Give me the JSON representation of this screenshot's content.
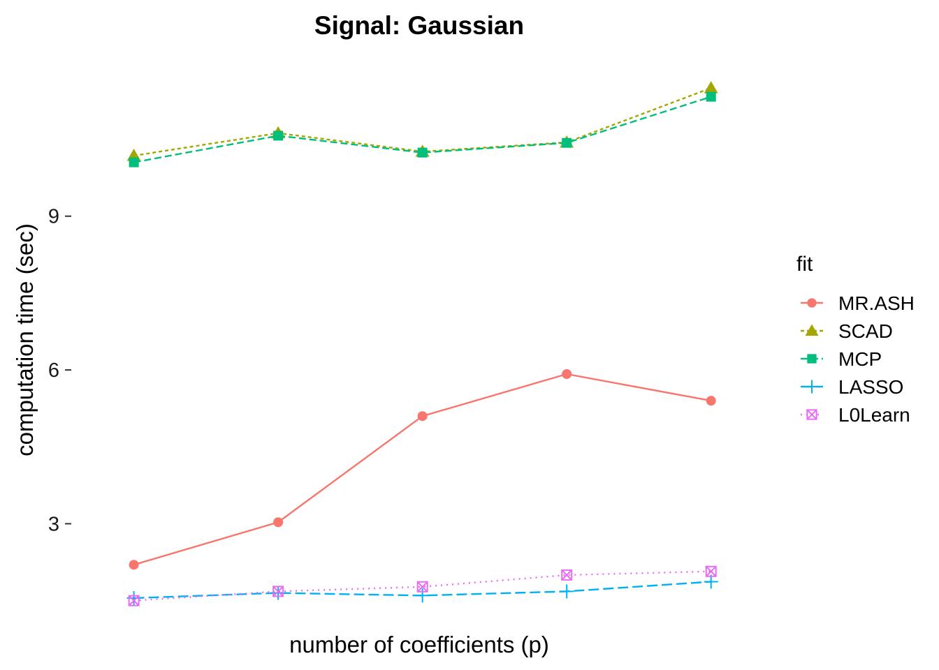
{
  "chart_data": {
    "type": "line",
    "title": "Signal: Gaussian",
    "xlabel": "number of coefficients (p)",
    "ylabel": "computation time (sec)",
    "x": [
      1,
      2,
      3,
      4,
      5
    ],
    "ylim": [
      1.1,
      12.4
    ],
    "yticks": [
      3,
      6,
      9
    ],
    "grid": false,
    "legend": {
      "title": "fit",
      "position": "right"
    },
    "series": [
      {
        "name": "MR.ASH",
        "color": "#F8766D",
        "shape": "circle",
        "linetype": "solid",
        "values": [
          2.2,
          3.03,
          5.1,
          5.92,
          5.4
        ]
      },
      {
        "name": "SCAD",
        "color": "#A3A500",
        "shape": "triangle",
        "linetype": "dashed-short",
        "values": [
          10.18,
          10.62,
          10.26,
          10.44,
          11.5
        ]
      },
      {
        "name": "MCP",
        "color": "#00BF7D",
        "shape": "square",
        "linetype": "dashed",
        "values": [
          10.05,
          10.57,
          10.24,
          10.43,
          11.33
        ]
      },
      {
        "name": "LASSO",
        "color": "#00B0F6",
        "shape": "plus",
        "linetype": "longdash",
        "values": [
          1.55,
          1.65,
          1.6,
          1.68,
          1.87
        ]
      },
      {
        "name": "L0Learn",
        "color": "#E76BF3",
        "shape": "square-x",
        "linetype": "dotted",
        "values": [
          1.5,
          1.68,
          1.77,
          2.0,
          2.07
        ]
      }
    ]
  }
}
